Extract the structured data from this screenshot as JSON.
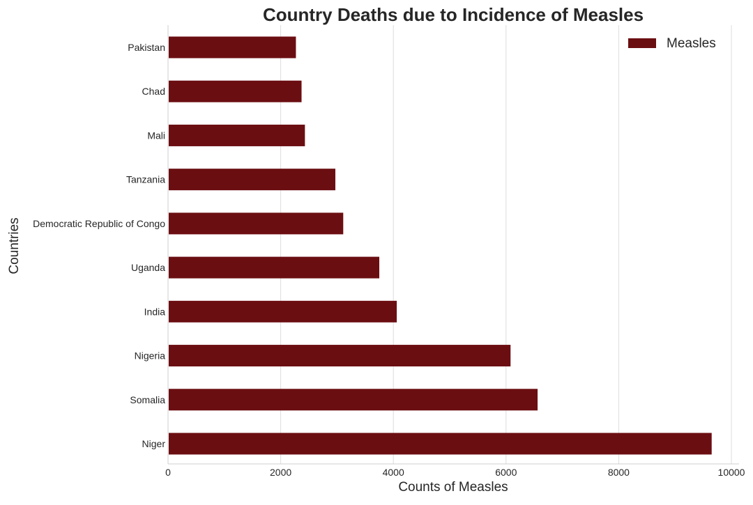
{
  "chart_data": {
    "type": "bar",
    "orientation": "horizontal",
    "title": "Country Deaths due to Incidence of Measles",
    "xlabel": "Counts of Measles",
    "ylabel": "Countries",
    "categories": [
      "Pakistan",
      "Chad",
      "Mali",
      "Tanzania",
      "Democratic Republic of Congo",
      "Uganda",
      "India",
      "Nigeria",
      "Somalia",
      "Niger"
    ],
    "series": [
      {
        "name": "Measles",
        "values": [
          2270,
          2370,
          2430,
          2970,
          3110,
          3750,
          4060,
          6080,
          6560,
          9650
        ]
      }
    ],
    "xlim": [
      0,
      10000
    ],
    "xticks": [
      0,
      2000,
      4000,
      6000,
      8000,
      10000
    ],
    "grid": "vertical",
    "legend": "top-right",
    "colors": {
      "bar": "#6b0e12",
      "grid": "#dcdcdc",
      "axis": "#cfcfcf",
      "text": "#262626"
    }
  }
}
